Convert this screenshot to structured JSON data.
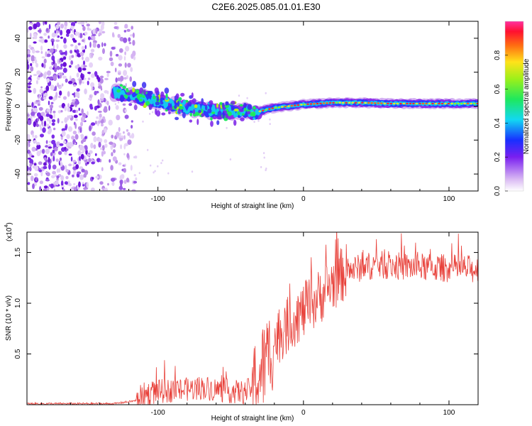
{
  "title": "C2E6.2025.085.01.01.E30",
  "chart_data": [
    {
      "type": "heatmap",
      "xlabel": "Height of straight line (km)",
      "ylabel": "Frequency (Hz)",
      "xlim": [
        -190,
        120
      ],
      "ylim": [
        -50,
        50
      ],
      "xticks": [
        -100,
        0,
        100
      ],
      "yticks": [
        -40,
        -20,
        0,
        20,
        40
      ],
      "colorbar": {
        "label": "Normalized spectral amplitude",
        "range": [
          0,
          1
        ],
        "ticks": [
          "0.0",
          "0.2",
          "0.4",
          "0.6",
          "0.8"
        ]
      },
      "ridge": {
        "x": [
          -130,
          -120,
          -110,
          -100,
          -90,
          -80,
          -70,
          -60,
          -50,
          -40,
          -35,
          -30,
          -20,
          -10,
          0,
          20,
          40,
          60,
          80,
          100,
          120
        ],
        "y": [
          8,
          7,
          5,
          3,
          1,
          -1,
          -2,
          -3,
          -3,
          -3,
          -4,
          -3,
          -1,
          0,
          1,
          2,
          2,
          1.5,
          1.5,
          1.5,
          1.5
        ]
      }
    },
    {
      "type": "line",
      "xlabel": "Height of straight line (km)",
      "ylabel": "SNR (10 * v/v)",
      "y_multiplier": "(x10",
      "y_multiplier_exp": "4",
      "xlim": [
        -190,
        120
      ],
      "ylim": [
        0,
        1.7
      ],
      "xticks": [
        -100,
        0,
        100
      ],
      "yticks": [
        "0.5",
        "1.0",
        "1.5"
      ],
      "color": "#e8413a",
      "trend": {
        "x": [
          -190,
          -130,
          -115,
          -110,
          -100,
          -80,
          -70,
          -60,
          -50,
          -40,
          -35,
          -30,
          -25,
          -20,
          -10,
          0,
          10,
          20,
          30,
          50,
          70,
          90,
          110,
          120
        ],
        "y": [
          0.01,
          0.01,
          0.04,
          0.1,
          0.13,
          0.15,
          0.17,
          0.15,
          0.13,
          0.12,
          0.18,
          0.3,
          0.45,
          0.62,
          0.8,
          0.92,
          1.05,
          1.2,
          1.32,
          1.38,
          1.36,
          1.35,
          1.34,
          1.33
        ]
      }
    }
  ]
}
